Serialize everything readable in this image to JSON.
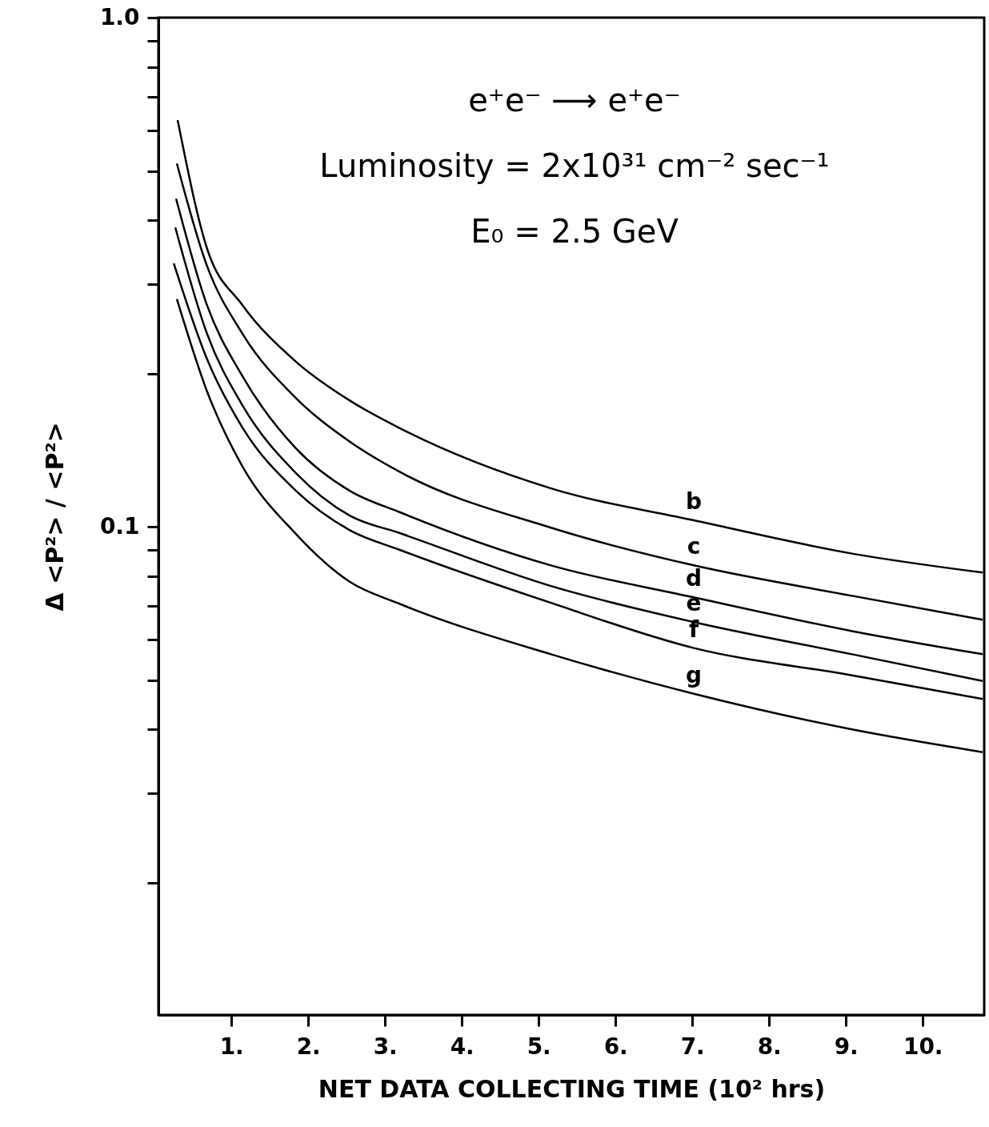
{
  "chart_data": {
    "type": "line",
    "annotations": [
      "e⁺e⁻ ⟶ e⁺e⁻",
      "Luminosity = 2x10³¹ cm⁻² sec⁻¹",
      "E₀ = 2.5 GeV"
    ],
    "xlabel": "NET DATA COLLECTING TIME (10² hrs)",
    "ylabel": "Δ <P²> / <P²>",
    "log": "y",
    "grid": false,
    "legend": false,
    "marker": "none",
    "line_style": "solid",
    "xlim": [
      0.05,
      10.8
    ],
    "ylim": [
      0.011,
      1.0
    ],
    "xticks": [
      {
        "value": 1,
        "label": "1."
      },
      {
        "value": 2,
        "label": "2."
      },
      {
        "value": 3,
        "label": "3."
      },
      {
        "value": 4,
        "label": "4."
      },
      {
        "value": 5,
        "label": "5."
      },
      {
        "value": 6,
        "label": "6."
      },
      {
        "value": 7,
        "label": "7."
      },
      {
        "value": 8,
        "label": "8."
      },
      {
        "value": 9,
        "label": "9."
      },
      {
        "value": 10,
        "label": "10."
      }
    ],
    "yticks": [
      {
        "value": 1,
        "label": "1.0"
      },
      {
        "value": 0.9,
        "label": null
      },
      {
        "value": 0.8,
        "label": null
      },
      {
        "value": 0.7,
        "label": null
      },
      {
        "value": 0.6,
        "label": null
      },
      {
        "value": 0.5,
        "label": null
      },
      {
        "value": 0.4,
        "label": null
      },
      {
        "value": 0.3,
        "label": null
      },
      {
        "value": 0.2,
        "label": null
      },
      {
        "value": 0.1,
        "label": "0.1"
      },
      {
        "value": 0.09,
        "label": null
      },
      {
        "value": 0.08,
        "label": null
      },
      {
        "value": 0.07,
        "label": null
      },
      {
        "value": 0.06,
        "label": null
      },
      {
        "value": 0.05,
        "label": null
      },
      {
        "value": 0.04,
        "label": null
      },
      {
        "value": 0.03,
        "label": null
      },
      {
        "value": 0.02,
        "label": null
      }
    ],
    "series": [
      {
        "name": "b",
        "color": "#000000",
        "x": [
          0.3,
          0.68,
          1.14,
          1.84,
          2.54,
          3.2,
          5.16,
          7.02,
          9.08,
          10.78
        ],
        "values": [
          0.629,
          0.353,
          0.273,
          0.211,
          0.177,
          0.156,
          0.119,
          0.103,
          0.0886,
          0.0813
        ]
      },
      {
        "name": "c",
        "color": "#000000",
        "x": [
          0.29,
          0.68,
          1.14,
          1.84,
          2.54,
          3.2,
          5.16,
          7.02,
          9.08,
          10.78
        ],
        "values": [
          0.517,
          0.326,
          0.24,
          0.179,
          0.147,
          0.128,
          0.0996,
          0.084,
          0.0732,
          0.0657
        ]
      },
      {
        "name": "d",
        "color": "#000000",
        "x": [
          0.28,
          0.68,
          1.14,
          1.84,
          2.54,
          3.2,
          5.16,
          7.02,
          9.08,
          10.78
        ],
        "values": [
          0.441,
          0.273,
          0.198,
          0.1426,
          0.1177,
          0.1067,
          0.084,
          0.0727,
          0.0624,
          0.0562
        ]
      },
      {
        "name": "e",
        "color": "#000000",
        "x": [
          0.27,
          0.68,
          1.14,
          1.84,
          2.54,
          3.2,
          5.16,
          7.02,
          9.08,
          10.78
        ],
        "values": [
          0.387,
          0.24,
          0.1736,
          0.1275,
          0.1052,
          0.0971,
          0.0765,
          0.065,
          0.0562,
          0.0498
        ]
      },
      {
        "name": "f",
        "color": "#000000",
        "x": [
          0.25,
          0.68,
          1.14,
          1.84,
          2.54,
          3.2,
          5.16,
          7.02,
          9.08,
          10.78
        ],
        "values": [
          0.329,
          0.214,
          0.157,
          0.1177,
          0.0985,
          0.09,
          0.0709,
          0.0578,
          0.0511,
          0.0459
        ]
      },
      {
        "name": "g",
        "color": "#000000",
        "x": [
          0.29,
          0.68,
          1.14,
          1.84,
          2.54,
          3.2,
          5.16,
          7.02,
          9.08,
          10.78
        ],
        "values": [
          0.28,
          0.185,
          0.1317,
          0.0968,
          0.078,
          0.0705,
          0.0562,
          0.047,
          0.04,
          0.0361
        ]
      }
    ]
  }
}
